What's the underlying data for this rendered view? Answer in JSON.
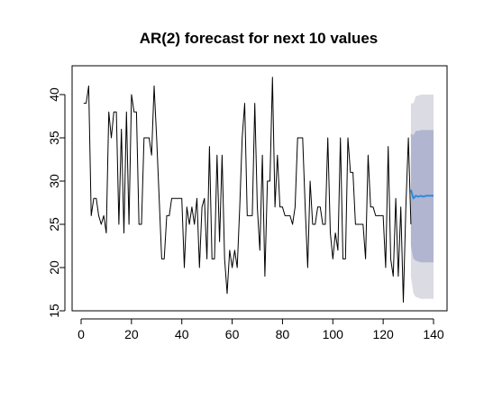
{
  "chart_data": {
    "type": "line",
    "title": "AR(2) forecast for next 10 values",
    "xlabel": "",
    "ylabel": "",
    "xlim": [
      0,
      140
    ],
    "ylim": [
      15,
      42.5
    ],
    "x_ticks": [
      0,
      20,
      40,
      60,
      80,
      100,
      120,
      140
    ],
    "x_tick_labels": [
      "0",
      "20",
      "40",
      "60",
      "80",
      "100",
      "120",
      "140"
    ],
    "y_ticks": [
      15,
      20,
      25,
      30,
      35,
      40
    ],
    "y_tick_labels": [
      "15",
      "20",
      "25",
      "30",
      "35",
      "40"
    ],
    "grid": false,
    "legend": "none",
    "colors": {
      "observed": "#000000",
      "forecast": "#2b8cde",
      "interval_80": "#b1b5cf",
      "interval_95": "#dbdbe3"
    },
    "series": [
      {
        "role": "observed",
        "x_start": 1,
        "values": [
          39,
          39,
          41,
          26,
          28,
          28,
          26,
          25,
          26,
          24,
          38,
          35,
          38,
          38,
          25,
          36,
          24,
          38,
          25,
          40,
          38,
          38,
          25,
          25,
          35,
          35,
          35,
          33,
          41,
          35,
          28,
          21,
          21,
          26,
          26,
          28,
          28,
          28,
          28,
          28,
          20,
          27,
          25,
          27,
          25,
          28,
          20,
          27,
          28,
          21,
          34,
          21,
          21,
          33,
          23,
          33,
          21,
          17,
          22,
          20,
          22,
          20,
          27,
          35,
          39,
          26,
          26,
          26,
          39,
          27,
          22,
          33,
          19,
          30,
          30,
          42,
          27,
          33,
          27,
          27,
          26,
          26,
          26,
          25,
          27,
          35,
          35,
          35,
          27,
          20,
          30,
          25,
          25,
          27,
          27,
          25,
          25,
          35,
          24,
          21,
          24,
          22,
          35,
          21,
          21,
          35,
          31,
          31,
          25,
          25,
          25,
          25,
          21,
          33,
          27,
          27,
          26,
          26,
          26,
          26,
          20,
          34,
          21,
          19,
          28,
          19,
          27,
          16,
          27,
          35,
          25
        ]
      },
      {
        "role": "forecast",
        "x": [
          131,
          132,
          133,
          134,
          135,
          136,
          137,
          138,
          139,
          140
        ],
        "mean": [
          29.0,
          28.0,
          28.3,
          28.2,
          28.3,
          28.2,
          28.3,
          28.3,
          28.3,
          28.3
        ],
        "lo80": [
          22.5,
          21.0,
          20.8,
          20.7,
          20.6,
          20.6,
          20.6,
          20.6,
          20.6,
          20.6
        ],
        "hi80": [
          35.5,
          35.3,
          35.8,
          35.8,
          35.9,
          35.9,
          35.9,
          35.9,
          35.9,
          35.9
        ],
        "lo95": [
          19.0,
          17.0,
          16.6,
          16.5,
          16.4,
          16.4,
          16.4,
          16.4,
          16.4,
          16.4
        ],
        "hi95": [
          39.0,
          39.0,
          39.8,
          39.9,
          40.0,
          40.0,
          40.0,
          40.0,
          40.0,
          40.0
        ]
      }
    ]
  }
}
